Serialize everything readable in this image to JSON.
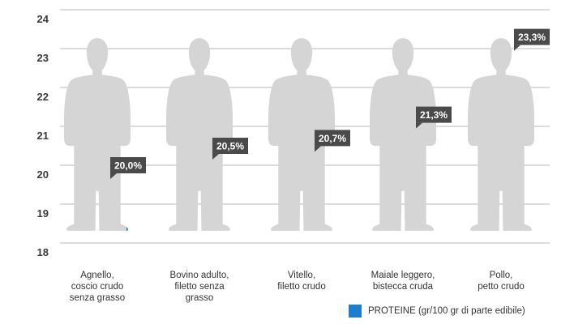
{
  "chart_data": {
    "type": "bar",
    "style": "pictogram-person-fill",
    "categories": [
      [
        "Agnello,",
        "coscio crudo",
        "senza grasso"
      ],
      [
        "Bovino adulto,",
        "filetto senza",
        "grasso"
      ],
      [
        "Vitello,",
        "filetto crudo"
      ],
      [
        "Maiale leggero,",
        "bistecca cruda"
      ],
      [
        "Pollo,",
        "petto crudo"
      ]
    ],
    "series": [
      {
        "name": "PROTEINE (gr/100 gr di parte edibile)",
        "values": [
          20.0,
          20.5,
          20.7,
          21.3,
          23.3
        ]
      }
    ],
    "data_labels": [
      "20,0%",
      "20,5%",
      "20,7%",
      "21,3%",
      "23,3%"
    ],
    "yticks": [
      "18",
      "19",
      "20",
      "21",
      "22",
      "23",
      "24"
    ],
    "ylim": [
      18,
      24
    ],
    "grid": true,
    "legend_position": "bottom-right",
    "colors": {
      "fill": "#1f7dcb",
      "silhouette": "#d5d5d5",
      "grid": "#b8b8b8",
      "label_bg": "#4a4a4a"
    }
  },
  "legend": {
    "label": "PROTEINE (gr/100 gr di parte edibile)"
  }
}
